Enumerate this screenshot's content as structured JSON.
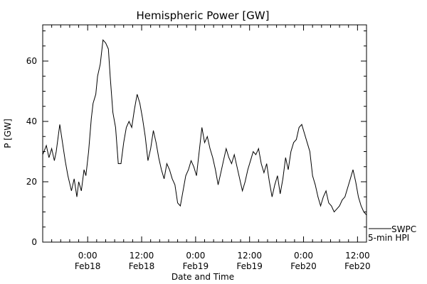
{
  "chart_data": {
    "type": "line",
    "title": "Hemispheric Power [GW]",
    "xlabel": "Date and Time",
    "ylabel": "P [GW]",
    "ylim": [
      0,
      72
    ],
    "yticks": [
      0,
      20,
      40,
      60
    ],
    "xlim": [
      "2016-02-17T14:00",
      "2016-02-20T14:00"
    ],
    "xticks": [
      {
        "t": "2016-02-18T00:00",
        "time": "0:00",
        "date": "Feb18"
      },
      {
        "t": "2016-02-18T12:00",
        "time": "12:00",
        "date": "Feb18"
      },
      {
        "t": "2016-02-19T00:00",
        "time": "0:00",
        "date": "Feb19"
      },
      {
        "t": "2016-02-19T12:00",
        "time": "12:00",
        "date": "Feb19"
      },
      {
        "t": "2016-02-20T00:00",
        "time": "0:00",
        "date": "Feb20"
      },
      {
        "t": "2016-02-20T12:00",
        "time": "12:00",
        "date": "Feb20"
      }
    ],
    "grid": false,
    "legend_position": "bottom-right",
    "series": [
      {
        "name": "SWPC 5-min HPI",
        "legend_line1": "SWPC",
        "legend_line2": "5-min HPI",
        "x": [
          "2016-02-17T14:00",
          "2016-02-17T14:48",
          "2016-02-17T15:24",
          "2016-02-17T16:00",
          "2016-02-17T16:36",
          "2016-02-17T17:00",
          "2016-02-17T17:48",
          "2016-02-17T18:24",
          "2016-02-17T19:00",
          "2016-02-17T19:36",
          "2016-02-17T20:24",
          "2016-02-17T21:00",
          "2016-02-17T21:36",
          "2016-02-17T22:00",
          "2016-02-17T22:36",
          "2016-02-17T23:12",
          "2016-02-17T23:36",
          "2016-02-18T00:12",
          "2016-02-18T00:48",
          "2016-02-18T01:12",
          "2016-02-18T01:48",
          "2016-02-18T02:12",
          "2016-02-18T02:48",
          "2016-02-18T03:24",
          "2016-02-18T04:00",
          "2016-02-18T04:36",
          "2016-02-18T05:00",
          "2016-02-18T05:36",
          "2016-02-18T06:12",
          "2016-02-18T06:48",
          "2016-02-18T07:24",
          "2016-02-18T08:00",
          "2016-02-18T08:36",
          "2016-02-18T09:12",
          "2016-02-18T09:48",
          "2016-02-18T10:24",
          "2016-02-18T11:00",
          "2016-02-18T11:36",
          "2016-02-18T12:12",
          "2016-02-18T12:48",
          "2016-02-18T13:24",
          "2016-02-18T14:00",
          "2016-02-18T14:36",
          "2016-02-18T15:12",
          "2016-02-18T15:48",
          "2016-02-18T16:24",
          "2016-02-18T17:00",
          "2016-02-18T17:36",
          "2016-02-18T18:12",
          "2016-02-18T18:48",
          "2016-02-18T19:24",
          "2016-02-18T20:00",
          "2016-02-18T20:36",
          "2016-02-18T21:12",
          "2016-02-18T21:48",
          "2016-02-18T22:24",
          "2016-02-18T23:00",
          "2016-02-18T23:36",
          "2016-02-19T00:12",
          "2016-02-19T00:48",
          "2016-02-19T01:24",
          "2016-02-19T02:00",
          "2016-02-19T02:36",
          "2016-02-19T03:12",
          "2016-02-19T03:48",
          "2016-02-19T04:24",
          "2016-02-19T05:00",
          "2016-02-19T05:36",
          "2016-02-19T06:12",
          "2016-02-19T06:48",
          "2016-02-19T07:24",
          "2016-02-19T08:00",
          "2016-02-19T08:36",
          "2016-02-19T09:12",
          "2016-02-19T09:48",
          "2016-02-19T10:24",
          "2016-02-19T11:00",
          "2016-02-19T11:36",
          "2016-02-19T12:12",
          "2016-02-19T12:48",
          "2016-02-19T13:24",
          "2016-02-19T14:00",
          "2016-02-19T14:36",
          "2016-02-19T15:12",
          "2016-02-19T15:48",
          "2016-02-19T16:24",
          "2016-02-19T17:00",
          "2016-02-19T17:36",
          "2016-02-19T18:12",
          "2016-02-19T18:48",
          "2016-02-19T19:24",
          "2016-02-19T20:00",
          "2016-02-19T20:36",
          "2016-02-19T21:12",
          "2016-02-19T21:48",
          "2016-02-19T22:24",
          "2016-02-19T23:00",
          "2016-02-19T23:36",
          "2016-02-20T00:12",
          "2016-02-20T00:48",
          "2016-02-20T01:24",
          "2016-02-20T02:00",
          "2016-02-20T02:36",
          "2016-02-20T03:12",
          "2016-02-20T03:48",
          "2016-02-20T04:24",
          "2016-02-20T05:00",
          "2016-02-20T05:36",
          "2016-02-20T06:12",
          "2016-02-20T06:48",
          "2016-02-20T07:24",
          "2016-02-20T08:00",
          "2016-02-20T08:36",
          "2016-02-20T09:12",
          "2016-02-20T09:48",
          "2016-02-20T10:24",
          "2016-02-20T11:00",
          "2016-02-20T11:36",
          "2016-02-20T12:12",
          "2016-02-20T12:48",
          "2016-02-20T13:24",
          "2016-02-20T14:00"
        ],
        "y": [
          29,
          32,
          28,
          31,
          27,
          30,
          39,
          33,
          27,
          22,
          17,
          21,
          15,
          20,
          17,
          24,
          22,
          30,
          41,
          46,
          49,
          55,
          59,
          67,
          66,
          64,
          55,
          43,
          38,
          26,
          26,
          33,
          38,
          40,
          38,
          44,
          49,
          46,
          41,
          35,
          27,
          31,
          37,
          33,
          28,
          24,
          21,
          26,
          24,
          21,
          19,
          13,
          12,
          17,
          22,
          24,
          27,
          25,
          22,
          30,
          38,
          33,
          35,
          31,
          28,
          24,
          19,
          23,
          27,
          31,
          28,
          26,
          29,
          25,
          21,
          17,
          20,
          24,
          27,
          30,
          29,
          31,
          26,
          23,
          26,
          20,
          15,
          19,
          22,
          16,
          21,
          28,
          24,
          30,
          33,
          34,
          38,
          39,
          36,
          33,
          30,
          22,
          19,
          15,
          12,
          15,
          17,
          13,
          12,
          10,
          11,
          12,
          14,
          15,
          18,
          21,
          24,
          20,
          15,
          12,
          10,
          9
        ]
      }
    ]
  }
}
